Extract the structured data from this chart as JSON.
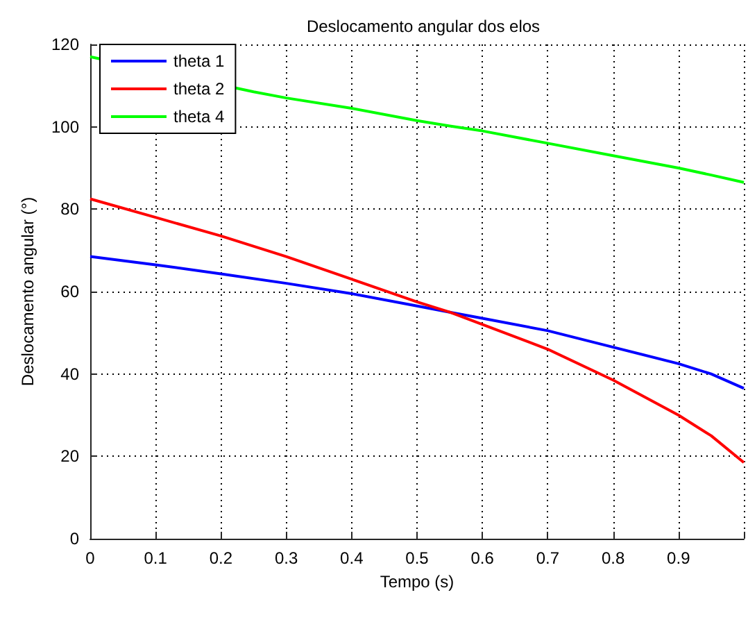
{
  "chart_data": {
    "type": "line",
    "title": "Deslocamento angular dos elos",
    "xlabel": "Tempo (s)",
    "ylabel": "Deslocamento angular (°)",
    "x": [
      0,
      0.1,
      0.2,
      0.3,
      0.4,
      0.5,
      0.55,
      0.6,
      0.7,
      0.8,
      0.9,
      0.95,
      1.0
    ],
    "series": [
      {
        "name": "theta 1",
        "color": "#0000ff",
        "values": [
          68.5,
          66.5,
          64.3,
          62,
          59.5,
          56.5,
          55,
          53.5,
          50.5,
          46.5,
          42.5,
          40,
          36.5
        ]
      },
      {
        "name": "theta 2",
        "color": "#ff0000",
        "values": [
          82.5,
          78,
          73.5,
          68.5,
          63,
          57.5,
          55,
          52,
          46,
          38.5,
          30,
          25,
          18.5
        ]
      },
      {
        "name": "theta 4",
        "color": "#00ff00",
        "x": [
          0,
          0.25,
          0.3,
          0.4,
          0.5,
          0.55,
          0.6,
          0.7,
          0.8,
          0.9,
          0.95,
          1.0
        ],
        "values": [
          117,
          108.5,
          107,
          104.5,
          101.5,
          100.2,
          99,
          96,
          93,
          90,
          88.3,
          86.5
        ]
      }
    ],
    "xlim": [
      0,
      1
    ],
    "xticks": [
      0,
      0.1,
      0.2,
      0.3,
      0.4,
      0.5,
      0.6,
      0.7,
      0.8,
      0.9,
      {
        "value": 1,
        "label": null
      }
    ],
    "ylim": [
      0,
      120
    ],
    "yticks": [
      0,
      20,
      40,
      60,
      80,
      100,
      120
    ],
    "grid": true,
    "legend": "top left",
    "marker": "none",
    "line_style": "solid"
  }
}
